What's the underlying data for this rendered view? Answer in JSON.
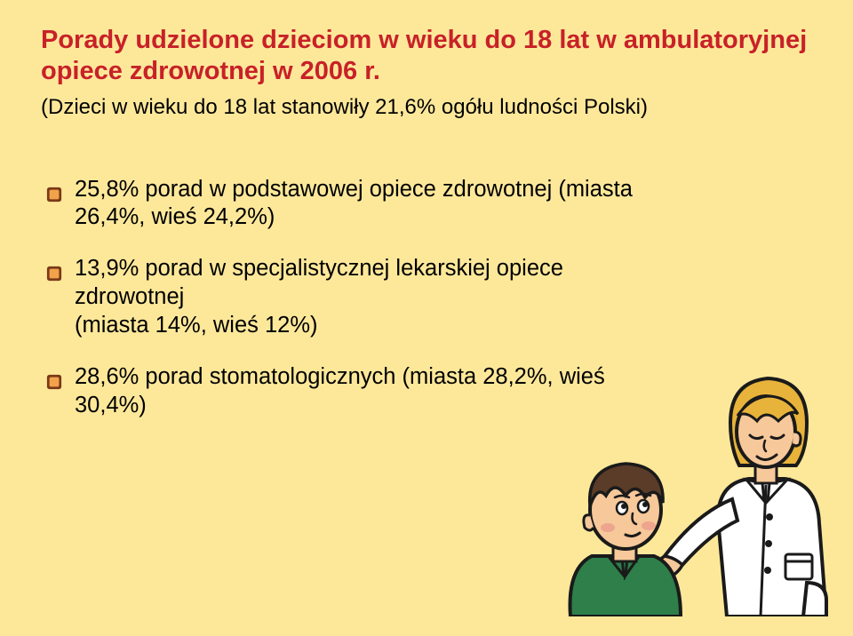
{
  "colors": {
    "background": "#fde89a",
    "title": "#c82128",
    "text": "#000000",
    "bullet_outer": "#7a3a18",
    "bullet_inner": "#f2a24a",
    "illus_line": "#1a1a1a",
    "nurse_coat": "#ffffff",
    "nurse_skin": "#f6c89a",
    "nurse_hair": "#e7b33a",
    "patient_skin": "#f6c89a",
    "patient_hair": "#5a3c28",
    "patient_shirt": "#2e7f4a",
    "cheek": "#e99a8a"
  },
  "typography": {
    "title_fontsize": 29,
    "subtitle_fontsize": 24,
    "bullet_fontsize": 25.5,
    "font_family": "Verdana"
  },
  "title": "Porady udzielone dzieciom w wieku do 18 lat w ambulatoryjnej opiece zdrowotnej w 2006 r.",
  "subtitle": "(Dzieci w wieku do 18 lat stanowiły 21,6% ogółu ludności Polski)",
  "bullets": [
    "25,8% porad w podstawowej opiece zdrowotnej (miasta 26,4%, wieś 24,2%)",
    "13,9% porad w specjalistycznej lekarskiej opiece zdrowotnej\n(miasta 14%, wieś 12%)",
    "28,6% porad stomatologicznych (miasta 28,2%, wieś 30,4%)"
  ]
}
